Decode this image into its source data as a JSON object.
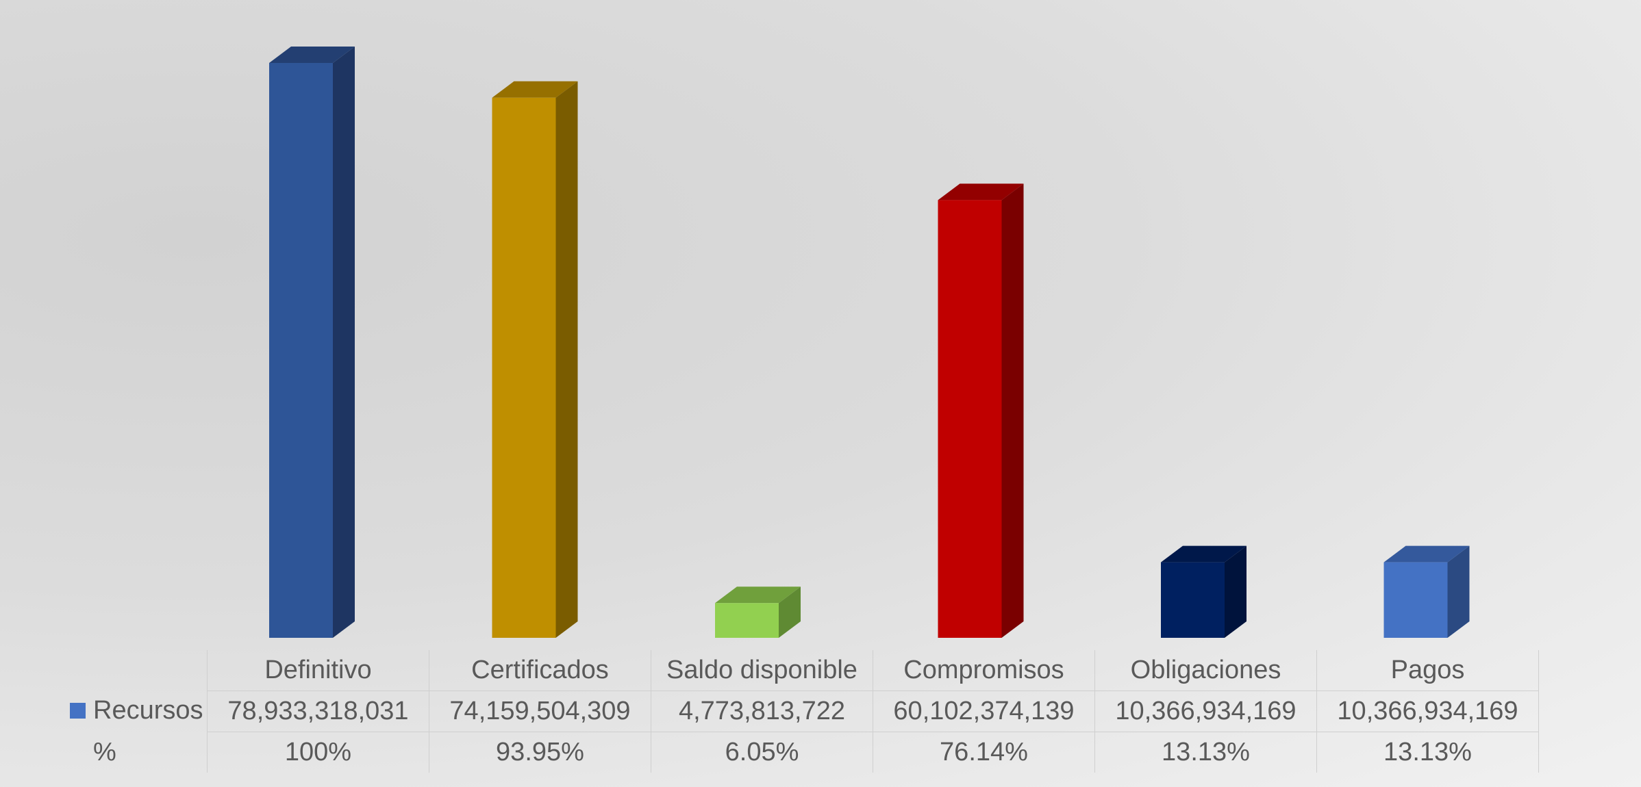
{
  "chart_data": {
    "type": "bar",
    "categories": [
      "Definitivo",
      "Certificados",
      "Saldo disponible",
      "Compromisos",
      "Obligaciones",
      "Pagos"
    ],
    "series": [
      {
        "name": "Recursos",
        "values": [
          78933318031,
          74159504309,
          4773813722,
          60102374139,
          10366934169,
          10366934169
        ]
      }
    ],
    "table_rows": [
      {
        "label": "Recursos",
        "cells": [
          "78,933,318,031",
          "74,159,504,309",
          "4,773,813,722",
          "60,102,374,139",
          "10,366,934,169",
          "10,366,934,169"
        ]
      },
      {
        "label": "%",
        "cells": [
          "100%",
          "93.95%",
          "6.05%",
          "76.14%",
          "13.13%",
          "13.13%"
        ]
      }
    ],
    "bar_colors": [
      {
        "front": "#2e5597",
        "side": "#1e3562",
        "top": "#233f72"
      },
      {
        "front": "#bf8f00",
        "side": "#7a5c00",
        "top": "#967000"
      },
      {
        "front": "#92d050",
        "side": "#5f8a33",
        "top": "#70a03c"
      },
      {
        "front": "#c00000",
        "side": "#7a0000",
        "top": "#930000"
      },
      {
        "front": "#002060",
        "side": "#00133c",
        "top": "#00184a"
      },
      {
        "front": "#4472c4",
        "side": "#2b4a82",
        "top": "#34599c"
      }
    ],
    "legend_key_color": "#4472c4",
    "ylim": [
      0,
      78933318031
    ],
    "grid": false,
    "legend": "data-table"
  }
}
